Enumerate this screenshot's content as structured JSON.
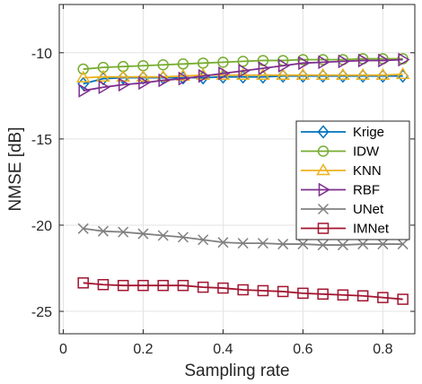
{
  "chart_data": {
    "type": "line",
    "title": "",
    "xlabel": "Sampling rate",
    "ylabel": "NMSE [dB]",
    "xlim": [
      -0.01,
      0.88
    ],
    "ylim": [
      -26.3,
      -7.2
    ],
    "xticks": [
      0,
      0.2,
      0.4,
      0.6,
      0.8
    ],
    "xtick_labels": [
      "0",
      "0.2",
      "0.4",
      "0.6",
      "0.8"
    ],
    "yticks": [
      -25,
      -20,
      -15,
      -10
    ],
    "ytick_labels": [
      "-25",
      "-20",
      "-15",
      "-10"
    ],
    "grid": true,
    "legend_position": "right",
    "x": [
      0.05,
      0.1,
      0.15,
      0.2,
      0.25,
      0.3,
      0.35,
      0.4,
      0.45,
      0.5,
      0.55,
      0.6,
      0.65,
      0.7,
      0.75,
      0.8,
      0.85
    ],
    "series": [
      {
        "name": "Krige",
        "color": "#0072BD",
        "marker": "diamond",
        "values": [
          -11.8,
          -11.5,
          -11.45,
          -11.45,
          -11.45,
          -11.45,
          -11.45,
          -11.4,
          -11.4,
          -11.4,
          -11.35,
          -11.35,
          -11.35,
          -11.35,
          -11.35,
          -11.35,
          -11.35
        ]
      },
      {
        "name": "IDW",
        "color": "#77AC30",
        "marker": "circle",
        "values": [
          -10.95,
          -10.85,
          -10.8,
          -10.75,
          -10.7,
          -10.65,
          -10.6,
          -10.55,
          -10.5,
          -10.45,
          -10.45,
          -10.4,
          -10.4,
          -10.4,
          -10.35,
          -10.35,
          -10.35
        ]
      },
      {
        "name": "KNN",
        "color": "#EDB120",
        "marker": "triangle-up",
        "values": [
          -11.45,
          -11.4,
          -11.4,
          -11.4,
          -11.4,
          -11.35,
          -11.3,
          -11.3,
          -11.3,
          -11.3,
          -11.3,
          -11.3,
          -11.3,
          -11.3,
          -11.3,
          -11.3,
          -11.25
        ]
      },
      {
        "name": "RBF",
        "color": "#7E2F8E",
        "marker": "triangle-right",
        "values": [
          -12.2,
          -12.0,
          -11.85,
          -11.75,
          -11.6,
          -11.5,
          -11.35,
          -11.2,
          -11.05,
          -10.9,
          -10.75,
          -10.6,
          -10.55,
          -10.5,
          -10.45,
          -10.45,
          -10.4
        ]
      },
      {
        "name": "UNet",
        "color": "#808080",
        "marker": "x",
        "values": [
          -20.2,
          -20.35,
          -20.4,
          -20.5,
          -20.6,
          -20.7,
          -20.85,
          -21.0,
          -21.05,
          -21.05,
          -21.1,
          -21.1,
          -21.15,
          -21.15,
          -21.1,
          -21.1,
          -21.1
        ]
      },
      {
        "name": "IMNet",
        "color": "#A2142F",
        "marker": "square",
        "values": [
          -23.35,
          -23.45,
          -23.5,
          -23.5,
          -23.5,
          -23.5,
          -23.6,
          -23.65,
          -23.75,
          -23.8,
          -23.85,
          -23.95,
          -24.0,
          -24.05,
          -24.1,
          -24.2,
          -24.3
        ]
      }
    ]
  }
}
